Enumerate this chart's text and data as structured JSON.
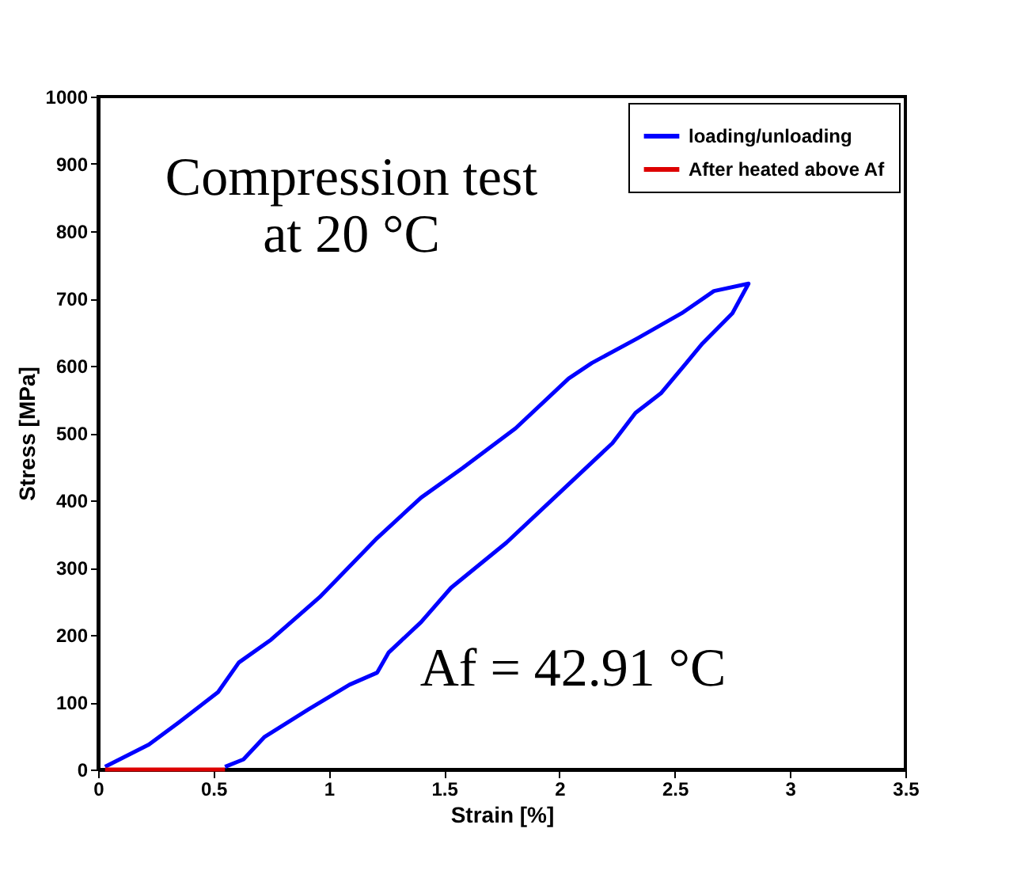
{
  "chart_data": {
    "type": "line",
    "xlabel": "Strain [%]",
    "ylabel": "Stress [MPa]",
    "xlim": [
      0,
      3.5
    ],
    "xticks": [
      0,
      0.5,
      1,
      1.5,
      2,
      2.5,
      3,
      3.5
    ],
    "ylim": [
      0,
      1000
    ],
    "yticks": [
      0,
      100,
      200,
      300,
      400,
      500,
      600,
      700,
      800,
      900,
      1000
    ],
    "grid": false,
    "legend": "top right",
    "line_style": "solid",
    "marker": "none",
    "annotations": [
      "Compression test\nat 20 °C",
      "Af = 42.91 °C"
    ],
    "series": [
      {
        "name": "loading/unloading",
        "color": "#0000ff",
        "x": [
          0.03,
          0.22,
          0.35,
          0.52,
          0.61,
          0.75,
          0.96,
          1.21,
          1.4,
          1.58,
          1.81,
          2.04,
          2.14,
          2.34,
          2.53,
          2.67,
          2.82,
          2.75,
          2.62,
          2.55,
          2.44,
          2.33,
          2.23,
          2.0,
          1.77,
          1.53,
          1.4,
          1.26,
          1.21,
          1.09,
          0.91,
          0.72,
          0.63,
          0.55
        ],
        "values": [
          4,
          37,
          70,
          115,
          159,
          193,
          256,
          344,
          404,
          448,
          507,
          581,
          604,
          641,
          678,
          711,
          722,
          678,
          633,
          604,
          559,
          530,
          485,
          411,
          337,
          270,
          219,
          174,
          144,
          126,
          89,
          48,
          15,
          4
        ]
      },
      {
        "name": "After heated above Af",
        "color": "#dd0000",
        "x": [
          0.03,
          0.55
        ],
        "values": [
          0,
          0
        ]
      }
    ]
  }
}
